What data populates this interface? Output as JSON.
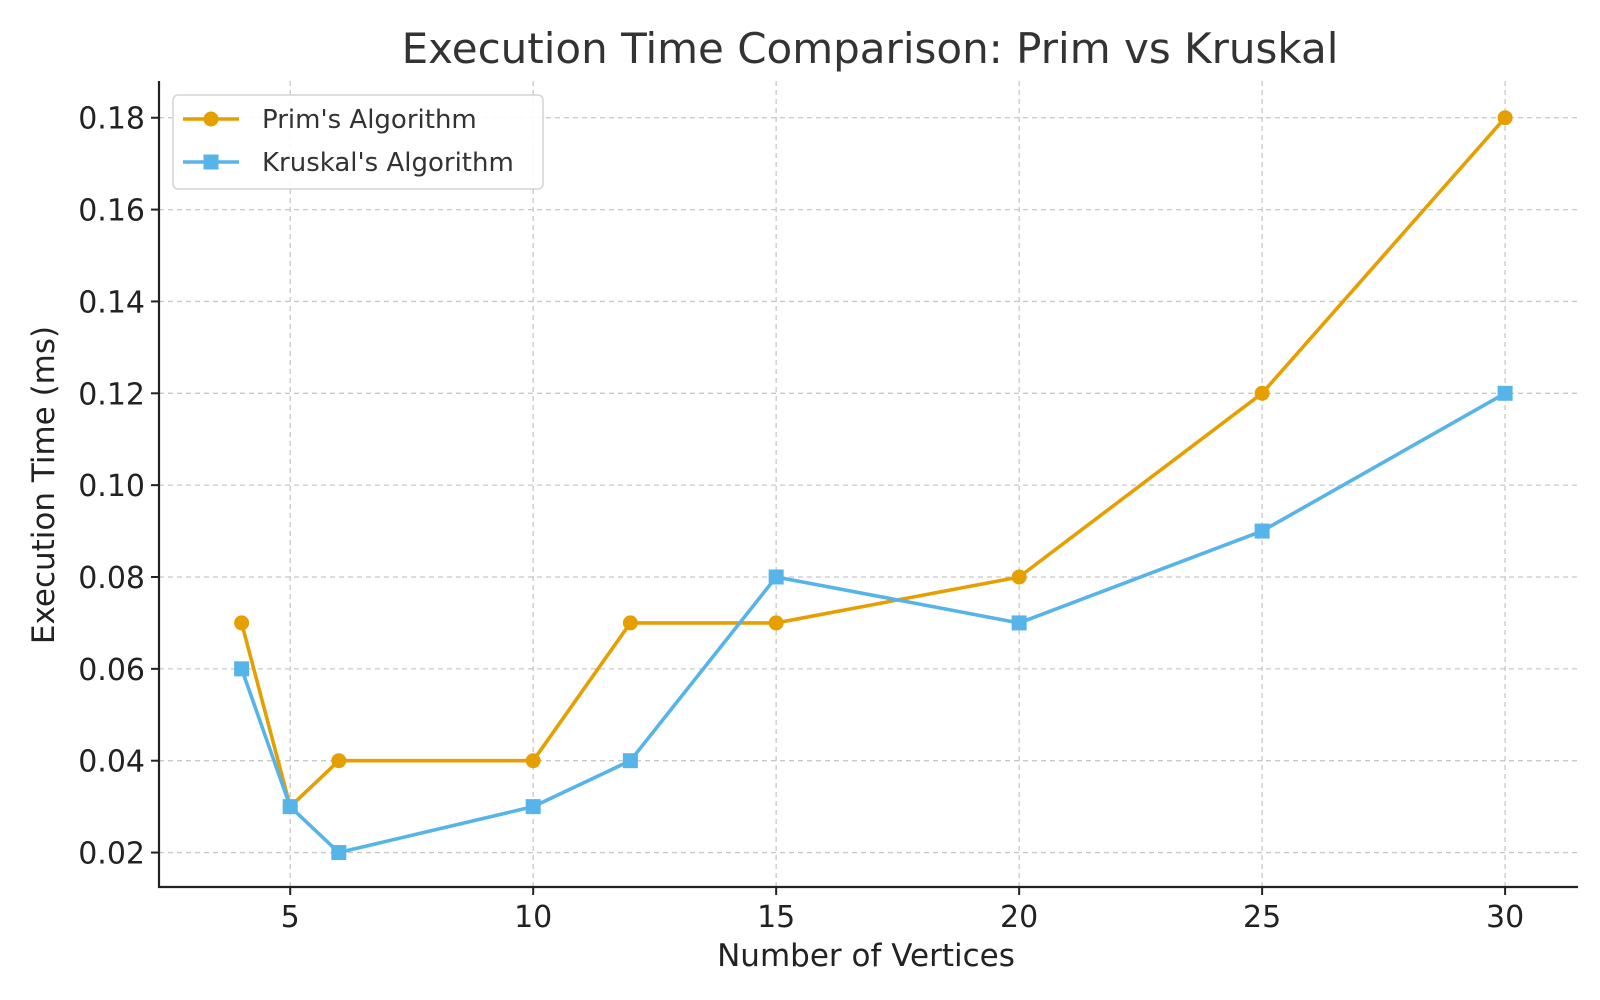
{
  "chart_data": {
    "type": "line",
    "title": "Execution Time Comparison: Prim vs Kruskal",
    "xlabel": "Number of Vertices",
    "ylabel": "Execution Time (ms)",
    "x": [
      4,
      5,
      6,
      10,
      12,
      15,
      20,
      25,
      30
    ],
    "xticks": [
      5,
      10,
      15,
      20,
      25,
      30
    ],
    "yticks": [
      0.02,
      0.04,
      0.06,
      0.08,
      0.1,
      0.12,
      0.14,
      0.16,
      0.18
    ],
    "ytick_labels": [
      "0.02",
      "0.04",
      "0.06",
      "0.08",
      "0.10",
      "0.12",
      "0.14",
      "0.16",
      "0.18"
    ],
    "xlim": [
      2.3,
      31.5
    ],
    "ylim": [
      0.0125,
      0.188
    ],
    "grid": true,
    "legend_position": "top-left",
    "series": [
      {
        "name": "Prim's Algorithm",
        "color": "#E69F00",
        "marker": "circle",
        "values": [
          0.07,
          0.03,
          0.04,
          0.04,
          0.07,
          0.07,
          0.08,
          0.12,
          0.18
        ]
      },
      {
        "name": "Kruskal's Algorithm",
        "color": "#56B4E9",
        "marker": "square",
        "values": [
          0.06,
          0.03,
          0.02,
          0.03,
          0.04,
          0.08,
          0.07,
          0.09,
          0.12
        ]
      }
    ]
  }
}
